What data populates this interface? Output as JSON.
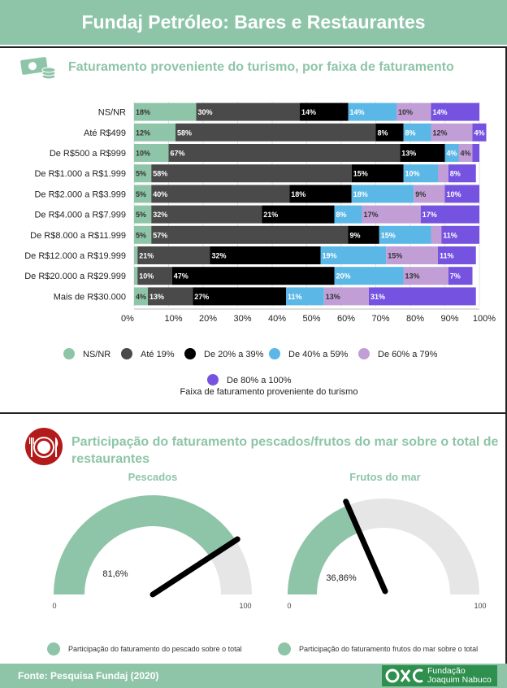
{
  "header": {
    "title": "Fundaj Petróleo: Bares e Restaurantes"
  },
  "section1": {
    "title": "Faturamento proveniente do turismo, por faixa de faturamento",
    "icon": "money-icon"
  },
  "section2": {
    "title_line1": "Participação do faturamento pescados/frutos do mar sobre o total de",
    "title_line2": "restaurantes",
    "icon": "dinner-plate-icon"
  },
  "colors": {
    "accent": "#8ec5a8",
    "nsnr": "#8ec5a8",
    "ate19": "#4a4a4a",
    "20a39": "#000000",
    "40a59": "#5bb8e6",
    "60a79": "#c19fd6",
    "80a100": "#7553e0",
    "gauge_bg": "#e6e6e6",
    "icon_red": "#b31b1b"
  },
  "chart_data": [
    {
      "type": "bar",
      "orientation": "horizontal-stacked-100",
      "title": "Faturamento proveniente do turismo, por faixa de faturamento",
      "xlabel": "Faixa de faturamento proveniente do turismo",
      "xlim": [
        0,
        100
      ],
      "x_ticks": [
        "0%",
        "10%",
        "20%",
        "30%",
        "40%",
        "50%",
        "60%",
        "70%",
        "80%",
        "90%",
        "100%"
      ],
      "categories": [
        "NS/NR",
        "Até R$499",
        "De R$500 a R$999",
        "De R$1.000 a R$1.999",
        "De R$2.000 a R$3.999",
        "De R$4.000 a R$7.999",
        "De R$8.000 a R$11.999",
        "De R$12.000 a R$19.999",
        "De R$20.000 a R$29.999",
        "Mais de R$30.000"
      ],
      "series": [
        {
          "name": "NS/NR",
          "color": "#8ec5a8",
          "label_color": "#333333",
          "values": [
            18,
            12,
            10,
            5,
            5,
            5,
            5,
            1,
            1,
            4
          ]
        },
        {
          "name": "Até 19%",
          "color": "#4a4a4a",
          "label_color": "#ffffff",
          "values": [
            30,
            58,
            67,
            58,
            40,
            32,
            57,
            21,
            10,
            13
          ]
        },
        {
          "name": "De 20% a 39%",
          "color": "#000000",
          "label_color": "#ffffff",
          "values": [
            14,
            8,
            13,
            15,
            18,
            21,
            9,
            32,
            47,
            27
          ]
        },
        {
          "name": "De 40% a 59%",
          "color": "#5bb8e6",
          "label_color": "#ffffff",
          "values": [
            14,
            8,
            4,
            10,
            18,
            8,
            15,
            19,
            20,
            11
          ]
        },
        {
          "name": "De 60% a 79%",
          "color": "#c19fd6",
          "label_color": "#333333",
          "values": [
            10,
            12,
            4,
            3,
            9,
            17,
            3,
            15,
            13,
            13
          ]
        },
        {
          "name": "De 80% a 100%",
          "color": "#7553e0",
          "label_color": "#ffffff",
          "values": [
            14,
            4,
            2,
            8,
            10,
            17,
            11,
            11,
            7,
            31
          ]
        }
      ],
      "legend": [
        "NS/NR",
        "Até 19%",
        "De 20% a 39%",
        "De 40% a 59%",
        "De 60% a 79%",
        "De 80% a 100%"
      ],
      "legend_position": "bottom"
    },
    {
      "type": "gauge",
      "title": "Pescados",
      "value": 81.6,
      "value_label": "81,6%",
      "min": 0,
      "max": 100,
      "min_label": "0",
      "max_label": "100",
      "legend": "Participação do faturamento do pescado sobre o total"
    },
    {
      "type": "gauge",
      "title": "Frutos do mar",
      "value": 36.86,
      "value_label": "36,86%",
      "min": 0,
      "max": 100,
      "min_label": "0",
      "max_label": "100",
      "legend": "Participação do faturamento frutos do mar sobre o total"
    }
  ],
  "footer": {
    "source": "Fonte: Pesquisa Fundaj (2020)",
    "logo_line1": "Fundação",
    "logo_line2": "Joaquim Nabuco"
  }
}
